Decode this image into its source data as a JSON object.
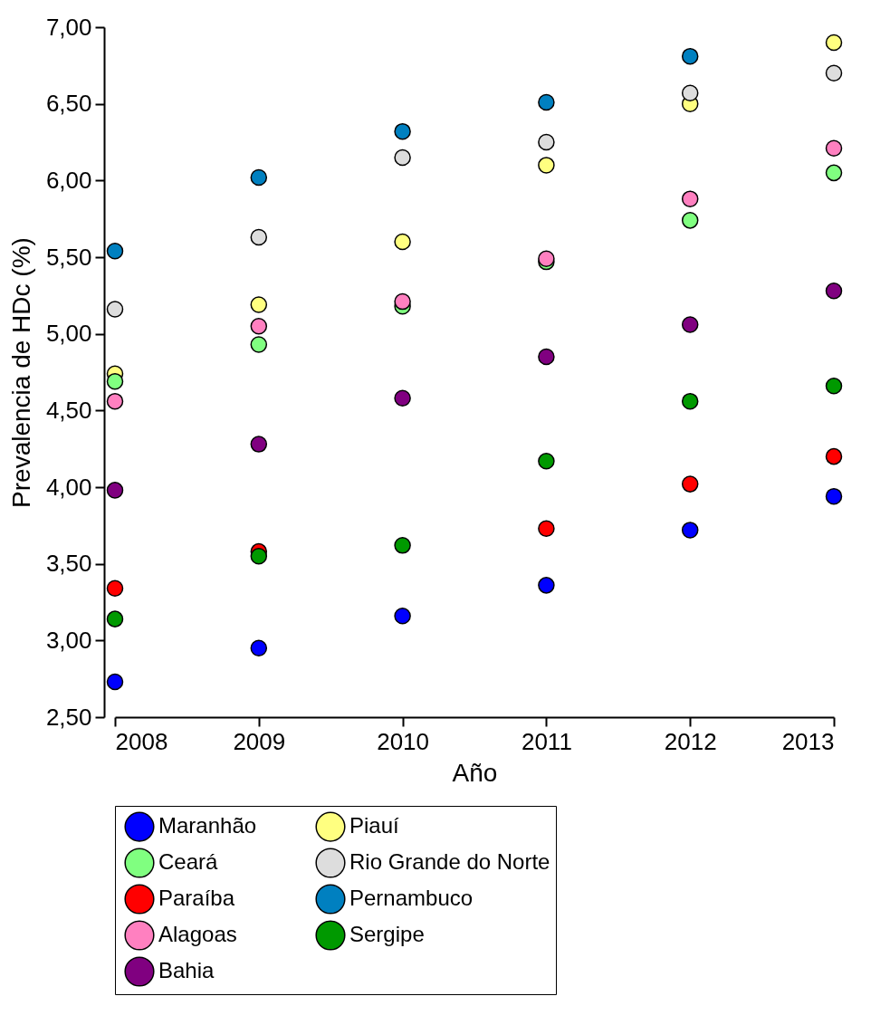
{
  "chart_data": {
    "type": "scatter",
    "xlabel": "Año",
    "ylabel": "Prevalencia de HDc (%)",
    "x": [
      2008,
      2009,
      2010,
      2011,
      2012,
      2013
    ],
    "series": [
      {
        "name": "Maranhão",
        "color": "#0000ff",
        "values": [
          2.73,
          2.95,
          3.16,
          3.36,
          3.72,
          3.94
        ]
      },
      {
        "name": "Piauí",
        "color": "#ffff80",
        "values": [
          4.74,
          5.19,
          5.6,
          6.1,
          6.5,
          6.9
        ]
      },
      {
        "name": "Ceará",
        "color": "#80ff80",
        "values": [
          4.69,
          4.93,
          5.18,
          5.47,
          5.74,
          6.05
        ]
      },
      {
        "name": "Rio Grande do Norte",
        "color": "#dddddd",
        "values": [
          5.16,
          5.63,
          6.15,
          6.25,
          6.57,
          6.7
        ]
      },
      {
        "name": "Paraíba",
        "color": "#ff0000",
        "values": [
          3.34,
          3.58,
          null,
          3.73,
          4.02,
          4.2
        ]
      },
      {
        "name": "Pernambuco",
        "color": "#0080c0",
        "values": [
          5.54,
          6.02,
          6.32,
          6.51,
          6.81,
          null
        ]
      },
      {
        "name": "Alagoas",
        "color": "#ff80c0",
        "values": [
          4.56,
          5.05,
          5.21,
          5.49,
          5.88,
          6.21
        ]
      },
      {
        "name": "Sergipe",
        "color": "#009900",
        "values": [
          3.14,
          3.55,
          3.62,
          4.17,
          4.56,
          4.66
        ]
      },
      {
        "name": "Bahia",
        "color": "#800080",
        "values": [
          3.98,
          4.28,
          4.58,
          4.85,
          5.06,
          5.28
        ]
      }
    ],
    "xlim": [
      2008,
      2013
    ],
    "xticks": [
      2008,
      2009,
      2010,
      2011,
      2012,
      2013
    ],
    "ylim": [
      2.5,
      7.0
    ],
    "yticks": [
      {
        "value": 2.5,
        "label": "2,50"
      },
      {
        "value": 3.0,
        "label": "3,00"
      },
      {
        "value": 3.5,
        "label": "3,50"
      },
      {
        "value": 4.0,
        "label": "4,00"
      },
      {
        "value": 4.5,
        "label": "4,50"
      },
      {
        "value": 5.0,
        "label": "5,00"
      },
      {
        "value": 5.5,
        "label": "5,50"
      },
      {
        "value": 6.0,
        "label": "6,00"
      },
      {
        "value": 6.5,
        "label": "6,50"
      },
      {
        "value": 7.0,
        "label": "7,00"
      }
    ],
    "grid": false,
    "legend": "bottom",
    "marker": "circle"
  }
}
